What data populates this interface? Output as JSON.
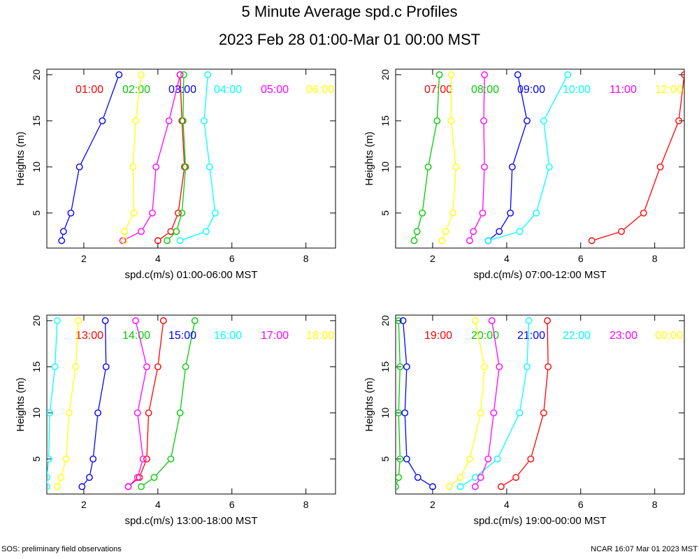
{
  "title": "5 Minute Average spd.c Profiles",
  "subtitle": "2023 Feb 28 01:00-Mar 01 00:00 MST",
  "footer_left": "SOS: preliminary field observations",
  "footer_right": "NCAR 16:07 Mar 01 2023 MST",
  "colors": [
    "#ff0000",
    "#00cc00",
    "#0000ff",
    "#00ffff",
    "#ff00ff",
    "#ffff00"
  ],
  "chart_data": [
    {
      "type": "line",
      "xlabel": "spd.c(m/s) 01:00-06:00 MST",
      "ylabel": "Heights (m)",
      "xlim": [
        1,
        8.8
      ],
      "ylim": [
        1.2,
        20.6
      ],
      "xticks": [
        2,
        4,
        6,
        8
      ],
      "yticks": [
        5,
        10,
        15,
        20
      ],
      "heights": [
        2,
        3,
        5,
        10,
        15,
        20
      ],
      "series": [
        {
          "name": "01:00",
          "values": [
            4.0,
            4.35,
            4.55,
            4.72,
            4.65,
            4.6
          ]
        },
        {
          "name": "02:00",
          "values": [
            4.25,
            4.5,
            4.65,
            4.75,
            4.68,
            4.7
          ]
        },
        {
          "name": "03:00",
          "values": [
            1.4,
            1.45,
            1.65,
            1.88,
            2.5,
            2.95
          ]
        },
        {
          "name": "04:00",
          "values": [
            4.6,
            5.3,
            5.55,
            5.4,
            5.25,
            5.35
          ]
        },
        {
          "name": "05:00",
          "values": [
            3.05,
            3.55,
            3.85,
            3.95,
            4.3,
            4.6
          ]
        },
        {
          "name": "06:00",
          "values": [
            3.1,
            3.1,
            3.35,
            3.33,
            3.4,
            3.55
          ]
        }
      ]
    },
    {
      "type": "line",
      "xlabel": "spd.c(m/s) 07:00-12:00 MST",
      "ylabel": "Heights (m)",
      "xlim": [
        1,
        8.8
      ],
      "ylim": [
        1.2,
        20.6
      ],
      "xticks": [
        2,
        4,
        6,
        8
      ],
      "yticks": [
        5,
        10,
        15,
        20
      ],
      "heights": [
        2,
        3,
        5,
        10,
        15,
        20
      ],
      "series": [
        {
          "name": "07:00",
          "values": [
            6.3,
            7.1,
            7.7,
            8.15,
            8.65,
            8.8
          ]
        },
        {
          "name": "08:00",
          "values": [
            1.5,
            1.58,
            1.72,
            1.88,
            2.12,
            2.18
          ]
        },
        {
          "name": "09:00",
          "values": [
            3.5,
            3.8,
            4.1,
            4.15,
            4.55,
            4.3
          ]
        },
        {
          "name": "10:00",
          "values": [
            3.5,
            4.35,
            4.8,
            5.15,
            5.0,
            5.65
          ]
        },
        {
          "name": "11:00",
          "values": [
            3.0,
            3.1,
            3.35,
            3.4,
            3.38,
            3.4
          ]
        },
        {
          "name": "12:00",
          "values": [
            2.25,
            2.35,
            2.55,
            2.63,
            2.5,
            2.5
          ]
        }
      ]
    },
    {
      "type": "line",
      "xlabel": "spd.c(m/s) 13:00-18:00 MST",
      "ylabel": "Heights (m)",
      "xlim": [
        1,
        8.8
      ],
      "ylim": [
        1.2,
        20.6
      ],
      "xticks": [
        2,
        4,
        6,
        8
      ],
      "yticks": [
        5,
        10,
        15,
        20
      ],
      "heights": [
        2,
        3,
        5,
        10,
        15,
        20
      ],
      "series": [
        {
          "name": "13:00",
          "values": [
            3.2,
            3.5,
            3.7,
            3.75,
            4.0,
            4.15
          ]
        },
        {
          "name": "14:00",
          "values": [
            3.55,
            3.9,
            4.35,
            4.6,
            4.75,
            5.0
          ]
        },
        {
          "name": "15:00",
          "values": [
            1.95,
            2.15,
            2.25,
            2.38,
            2.6,
            2.58
          ]
        },
        {
          "name": "16:00",
          "values": [
            1.0,
            1.0,
            1.05,
            1.08,
            1.22,
            1.28
          ]
        },
        {
          "name": "17:00",
          "values": [
            3.2,
            3.45,
            3.6,
            3.45,
            3.7,
            3.4
          ]
        },
        {
          "name": "18:00",
          "values": [
            1.28,
            1.38,
            1.52,
            1.6,
            1.78,
            1.85
          ]
        }
      ]
    },
    {
      "type": "line",
      "xlabel": "spd.c(m/s) 19:00-00:00 MST",
      "ylabel": "Heights (m)",
      "xlim": [
        1,
        8.8
      ],
      "ylim": [
        1.2,
        20.6
      ],
      "xticks": [
        2,
        4,
        6,
        8
      ],
      "yticks": [
        5,
        10,
        15,
        20
      ],
      "heights": [
        2,
        3,
        5,
        10,
        15,
        20
      ],
      "series": [
        {
          "name": "19:00",
          "values": [
            3.85,
            4.25,
            4.65,
            5.0,
            5.12,
            5.1
          ]
        },
        {
          "name": "20:00",
          "values": [
            1.0,
            1.08,
            1.12,
            1.08,
            1.12,
            1.08
          ]
        },
        {
          "name": "21:00",
          "values": [
            2.0,
            1.6,
            1.3,
            1.25,
            1.3,
            1.2
          ]
        },
        {
          "name": "22:00",
          "values": [
            2.75,
            3.15,
            3.75,
            4.35,
            4.55,
            4.6
          ]
        },
        {
          "name": "23:00",
          "values": [
            3.15,
            3.3,
            3.5,
            3.65,
            3.8,
            3.6
          ]
        },
        {
          "name": "00:00",
          "values": [
            2.45,
            2.75,
            3.0,
            3.3,
            3.4,
            3.15
          ]
        }
      ]
    }
  ]
}
